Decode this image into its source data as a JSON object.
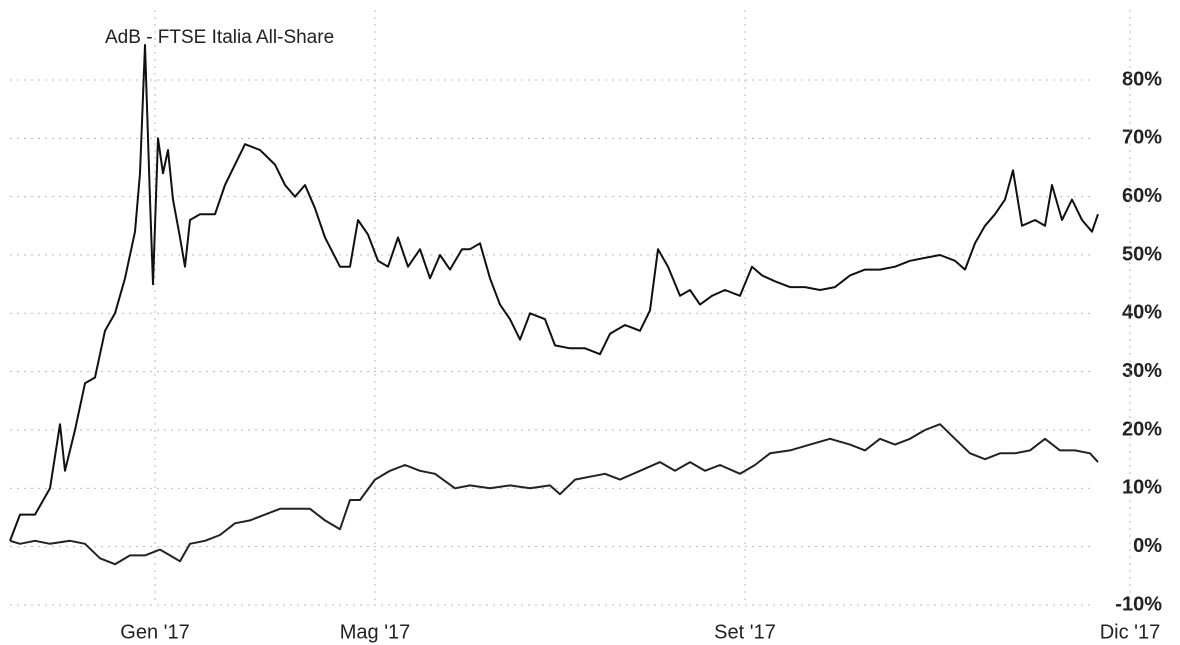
{
  "chart_data": {
    "type": "line",
    "title": "AdB - FTSE Italia All-Share",
    "xlim": [
      0,
      112
    ],
    "xticks": [
      {
        "value": 14.5,
        "label": "Gen '17"
      },
      {
        "value": 36.5,
        "label": "Mag '17"
      },
      {
        "value": 73.5,
        "label": "Set '17"
      },
      {
        "value": 112,
        "label": "Dic '17"
      }
    ],
    "ylim": [
      -10,
      92
    ],
    "yticks": [
      {
        "value": -10,
        "label": "-10%"
      },
      {
        "value": 0,
        "label": "0%"
      },
      {
        "value": 10,
        "label": "10%"
      },
      {
        "value": 20,
        "label": "20%"
      },
      {
        "value": 30,
        "label": "30%"
      },
      {
        "value": 40,
        "label": "40%"
      },
      {
        "value": 50,
        "label": "50%"
      },
      {
        "value": 60,
        "label": "60%"
      },
      {
        "value": 70,
        "label": "70%"
      },
      {
        "value": 80,
        "label": "80%"
      }
    ],
    "grid": true,
    "series": [
      {
        "color": "#111111",
        "x": [
          0,
          1,
          2.5,
          4,
          5,
          5.5,
          6.5,
          7.5,
          8.5,
          9.5,
          10.5,
          11.5,
          12.5,
          13,
          13.5,
          14,
          14.3,
          14.8,
          15.3,
          15.8,
          16.3,
          17,
          17.5,
          18,
          19,
          20.5,
          21.5,
          22.5,
          23.5,
          25,
          26.5,
          27.5,
          28.5,
          29.5,
          30.5,
          31.5,
          33,
          34,
          34.8,
          35.8,
          36.8,
          37.8,
          38.8,
          39.8,
          41,
          42,
          43,
          44,
          45.2,
          46,
          47,
          48,
          49,
          50,
          51,
          52,
          53.5,
          54.5,
          56,
          57.5,
          59,
          60,
          61.5,
          63,
          64,
          64.8,
          65.8,
          67,
          68,
          69,
          70.2,
          71.5,
          73,
          74.2,
          75.2,
          76.5,
          78,
          79.5,
          81,
          82.5,
          84,
          85.5,
          87,
          88.5,
          90,
          91.5,
          93,
          94.5,
          95.5,
          96.5,
          97.5,
          98.5,
          99.5,
          100.3,
          101.2,
          102.5,
          103.5,
          104.2,
          105.2,
          106.2,
          107.2,
          108.2,
          108.8
        ],
        "values": [
          1,
          5.5,
          5.5,
          10,
          21,
          13,
          20,
          28,
          29,
          37,
          40,
          46,
          54,
          64,
          86,
          59.5,
          45,
          70,
          64,
          68,
          59.5,
          53,
          48,
          56,
          57,
          57,
          62,
          65.5,
          69,
          68,
          65.5,
          62,
          60,
          62,
          58,
          53,
          48,
          48,
          56,
          53.5,
          49,
          48,
          53,
          48,
          51,
          46,
          50,
          47.5,
          51,
          51,
          52,
          46,
          41.5,
          39,
          35.5,
          40,
          39,
          34.5,
          34,
          34,
          33,
          36.5,
          38,
          37,
          40.5,
          51,
          48,
          43,
          44,
          41.5,
          43,
          44,
          43,
          48,
          46.5,
          45.5,
          44.5,
          44.5,
          44,
          44.5,
          46.5,
          47.5,
          47.5,
          48,
          49,
          49.5,
          50,
          49,
          47.5,
          52,
          55,
          57,
          59.5,
          64.5,
          55,
          56,
          55,
          62,
          56,
          59.5,
          56,
          54,
          57
        ]
      },
      {
        "color": "#222222",
        "x": [
          0,
          1,
          2.5,
          4,
          6,
          7.5,
          9,
          10.5,
          12,
          13.5,
          15,
          16,
          17,
          18,
          19.5,
          21,
          22.5,
          24,
          25.5,
          27,
          28.5,
          30,
          31.5,
          33,
          34,
          35,
          36.5,
          38,
          39.5,
          41,
          42.5,
          44.5,
          46,
          48,
          50,
          52,
          54,
          55,
          56.5,
          58,
          59.5,
          61,
          63,
          65,
          66.5,
          68,
          69.5,
          71,
          73,
          74.5,
          76,
          78,
          80,
          82,
          84,
          85.5,
          87,
          88.5,
          90,
          91.5,
          93,
          94.5,
          96,
          97.5,
          99,
          100.5,
          102,
          103.5,
          105,
          106.5,
          108,
          108.8
        ],
        "values": [
          1,
          0.5,
          1,
          0.5,
          1,
          0.5,
          -2,
          -3,
          -1.5,
          -1.5,
          -0.5,
          -1.5,
          -2.5,
          0.5,
          1,
          2,
          4,
          4.5,
          5.5,
          6.5,
          6.5,
          6.5,
          4.5,
          3,
          8,
          8,
          11.5,
          13,
          14,
          13,
          12.5,
          10,
          10.5,
          10,
          10.5,
          10,
          10.5,
          9,
          11.5,
          12,
          12.5,
          11.5,
          13,
          14.5,
          13,
          14.5,
          13,
          14,
          12.5,
          14,
          16,
          16.5,
          17.5,
          18.5,
          17.5,
          16.5,
          18.5,
          17.5,
          18.5,
          20,
          21,
          18.5,
          16,
          15,
          16,
          16,
          16.5,
          18.5,
          16.5,
          16.5,
          16,
          14.5
        ]
      }
    ]
  }
}
